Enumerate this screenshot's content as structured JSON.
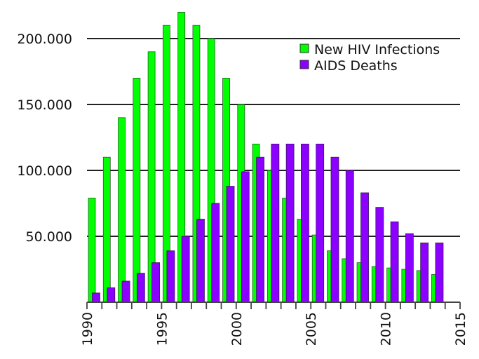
{
  "chart_data": {
    "type": "bar",
    "title": "",
    "xlabel": "",
    "ylabel": "",
    "ylim": [
      0,
      220000
    ],
    "xlim": [
      1990,
      2015
    ],
    "grid": true,
    "legend_position": "top-right",
    "x": [
      1990,
      1991,
      1992,
      1993,
      1994,
      1995,
      1996,
      1997,
      1998,
      1999,
      2000,
      2001,
      2002,
      2003,
      2004,
      2005,
      2006,
      2007,
      2008,
      2009,
      2010,
      2011,
      2012,
      2013
    ],
    "xticks": [
      1990,
      1995,
      2000,
      2005,
      2010,
      2015
    ],
    "xtick_labels": [
      "1990",
      "1995",
      "2000",
      "2005",
      "2010",
      "2015"
    ],
    "yticks": [
      50000,
      100000,
      150000,
      200000
    ],
    "ytick_labels": [
      "50.000",
      "100.000",
      "150.000",
      "200.000"
    ],
    "series": [
      {
        "name": "New HIV Infections",
        "color": "#00ff00",
        "values": [
          79000,
          110000,
          140000,
          170000,
          190000,
          210000,
          220000,
          210000,
          200000,
          170000,
          150000,
          120000,
          100000,
          79000,
          63000,
          51000,
          39000,
          33000,
          30000,
          27000,
          26000,
          25000,
          24000,
          21000
        ]
      },
      {
        "name": "AIDS Deaths",
        "color": "#8b00ff",
        "values": [
          7000,
          11000,
          16000,
          22000,
          30000,
          39000,
          50000,
          63000,
          75000,
          88000,
          99000,
          110000,
          120000,
          120000,
          120000,
          120000,
          110000,
          100000,
          83000,
          72000,
          61000,
          52000,
          45000,
          45000
        ]
      }
    ]
  }
}
